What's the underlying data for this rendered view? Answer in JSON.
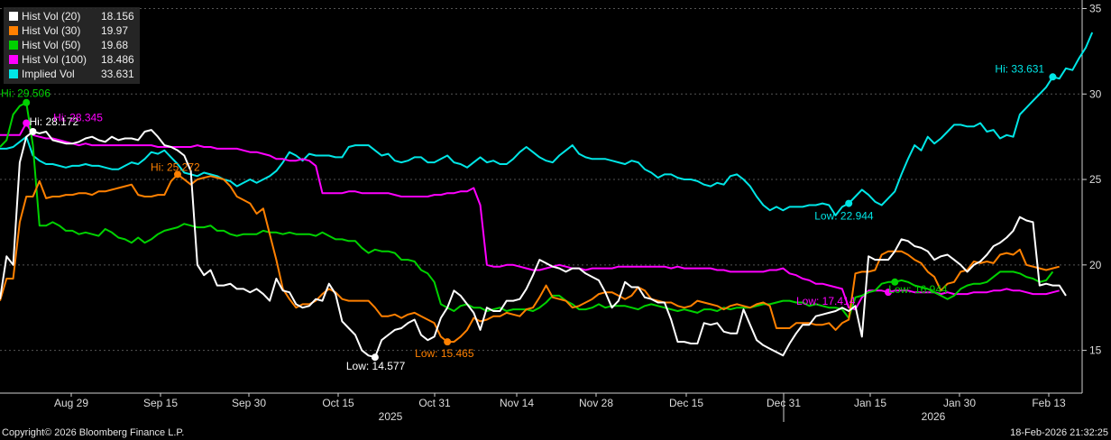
{
  "chart_data": {
    "type": "line",
    "y_axis": {
      "min": 12.5,
      "max": 35.5,
      "ticks": [
        15,
        20,
        25,
        30,
        35
      ],
      "position": "right"
    },
    "x_axis": {
      "tick_labels": [
        "Aug 29",
        "Sep 15",
        "Sep 30",
        "Oct 15",
        "Oct 31",
        "Nov 14",
        "Nov 28",
        "Dec 15",
        "Dec 31",
        "Jan 15",
        "Jan 30",
        "Feb 13"
      ],
      "year_labels": [
        "2025",
        "2026"
      ]
    },
    "grid": "horizontal dashed",
    "legend_placement": "top-left",
    "series": [
      {
        "name": "Hist Vol (20)",
        "last": "18.156",
        "color": "#ffffff",
        "values": [
          18.0,
          20.5,
          20.0,
          26.0,
          27.5,
          27.8,
          27.7,
          27.8,
          27.3,
          27.2,
          27.1,
          27.1,
          27.2,
          27.4,
          27.5,
          27.3,
          27.2,
          27.5,
          27.3,
          27.4,
          27.4,
          27.3,
          27.8,
          27.9,
          27.5,
          27.0,
          26.9,
          26.7,
          26.4,
          25.5,
          20.0,
          19.4,
          19.7,
          18.8,
          18.8,
          18.9,
          18.6,
          18.6,
          18.4,
          18.6,
          18.3,
          17.9,
          19.2,
          18.5,
          18.4,
          17.7,
          17.5,
          17.6,
          18.0,
          17.9,
          18.9,
          18.3,
          16.7,
          16.3,
          15.9,
          15.0,
          14.7,
          14.6,
          15.6,
          15.9,
          16.2,
          16.3,
          16.6,
          16.8,
          15.9,
          15.6,
          15.8,
          16.9,
          17.5,
          18.5,
          18.2,
          17.7,
          17.2,
          16.2,
          17.5,
          17.3,
          17.3,
          17.9,
          17.9,
          18.0,
          18.6,
          19.4,
          20.3,
          20.1,
          19.9,
          19.8,
          19.6,
          19.8,
          19.8,
          19.5,
          19.3,
          19.1,
          18.4,
          17.5,
          17.9,
          19.0,
          18.7,
          18.7,
          18.1,
          18.0,
          17.8,
          17.8,
          16.8,
          15.5,
          15.5,
          15.4,
          15.4,
          16.6,
          16.5,
          16.6,
          16.1,
          16.0,
          16.0,
          17.4,
          16.5,
          15.6,
          15.3,
          15.1,
          14.9,
          14.7,
          15.4,
          16.0,
          16.5,
          16.5,
          17.0,
          17.1,
          17.2,
          17.3,
          17.5,
          17.3,
          17.6,
          15.8,
          20.5,
          20.3,
          20.3,
          20.3,
          20.8,
          21.5,
          21.4,
          21.1,
          21.0,
          20.8,
          20.3,
          20.5,
          20.6,
          20.3,
          20.0,
          19.6,
          20.0,
          20.2,
          20.6,
          21.1,
          21.3,
          21.6,
          22.0,
          22.8,
          22.6,
          22.5,
          18.8,
          18.9,
          18.8,
          18.8,
          18.2
        ]
      },
      {
        "name": "Hist Vol (30)",
        "last": "19.97",
        "color": "#ff8000",
        "values": [
          17.9,
          19.2,
          19.2,
          22.5,
          24.0,
          24.0,
          24.9,
          23.9,
          24.0,
          24.0,
          24.1,
          24.1,
          24.2,
          24.2,
          24.1,
          24.3,
          24.3,
          24.4,
          24.5,
          24.6,
          24.7,
          24.1,
          24.0,
          24.0,
          24.1,
          24.1,
          24.9,
          25.3,
          25.0,
          24.7,
          25.0,
          25.1,
          25.2,
          25.1,
          25.0,
          24.6,
          24.0,
          23.8,
          23.6,
          23.0,
          23.3,
          21.8,
          20.3,
          18.6,
          18.0,
          17.5,
          17.7,
          17.7,
          17.9,
          18.3,
          18.6,
          18.4,
          18.0,
          17.9,
          17.9,
          17.9,
          17.9,
          17.5,
          17.0,
          17.0,
          17.1,
          16.9,
          17.1,
          17.2,
          17.0,
          16.8,
          16.6,
          15.8,
          15.5,
          15.5,
          15.8,
          16.2,
          16.9,
          16.7,
          16.8,
          17.0,
          17.0,
          17.2,
          17.1,
          17.0,
          17.4,
          17.5,
          18.1,
          18.8,
          18.1,
          18.0,
          17.9,
          17.5,
          17.6,
          17.8,
          18.0,
          18.3,
          18.4,
          18.4,
          18.2,
          18.0,
          18.2,
          18.7,
          18.5,
          18.0,
          17.9,
          17.8,
          17.8,
          17.6,
          17.5,
          17.6,
          17.9,
          17.8,
          17.7,
          17.6,
          17.4,
          17.6,
          17.7,
          17.6,
          17.5,
          17.7,
          17.8,
          17.6,
          16.3,
          16.3,
          16.3,
          16.6,
          16.6,
          16.6,
          16.5,
          16.5,
          16.6,
          16.2,
          16.6,
          16.8,
          19.5,
          19.6,
          19.6,
          19.7,
          20.6,
          20.8,
          20.8,
          20.8,
          20.6,
          20.3,
          20.1,
          19.6,
          19.3,
          18.5,
          18.9,
          19.0,
          19.6,
          19.7,
          20.2,
          20.1,
          20.2,
          20.1,
          20.6,
          20.7,
          20.6,
          20.9,
          20.0,
          19.9,
          19.8,
          19.7,
          19.8,
          19.9
        ]
      },
      {
        "name": "Hist Vol (50)",
        "last": "19.68",
        "color": "#00d200",
        "values": [
          26.9,
          27.3,
          28.8,
          29.3,
          29.5,
          27.0,
          22.3,
          22.3,
          22.5,
          22.3,
          22.0,
          22.0,
          21.8,
          21.9,
          21.8,
          21.7,
          22.1,
          21.9,
          21.6,
          21.5,
          21.3,
          21.6,
          21.3,
          21.5,
          21.8,
          22.0,
          22.1,
          22.2,
          22.4,
          22.3,
          22.2,
          22.2,
          22.3,
          22.0,
          22.0,
          21.8,
          21.7,
          21.8,
          21.8,
          21.8,
          22.0,
          21.9,
          21.9,
          21.8,
          21.9,
          21.8,
          21.8,
          21.8,
          21.7,
          21.9,
          21.7,
          21.5,
          21.5,
          21.4,
          21.4,
          21.0,
          20.7,
          20.9,
          20.8,
          20.8,
          20.7,
          20.3,
          20.3,
          20.2,
          19.7,
          19.5,
          19.0,
          17.7,
          17.5,
          17.3,
          17.6,
          17.7,
          17.5,
          17.5,
          17.3,
          17.4,
          17.5,
          17.3,
          17.4,
          17.4,
          17.4,
          17.3,
          17.5,
          17.8,
          18.2,
          18.2,
          17.9,
          17.7,
          17.4,
          17.4,
          17.5,
          17.7,
          17.5,
          17.6,
          17.6,
          17.6,
          17.5,
          17.4,
          17.6,
          17.7,
          17.6,
          17.5,
          17.4,
          17.3,
          17.4,
          17.3,
          17.2,
          17.4,
          17.4,
          17.3,
          17.5,
          17.4,
          17.5,
          17.5,
          17.5,
          17.6,
          17.7,
          17.7,
          17.8,
          17.9,
          17.9,
          17.8,
          17.8,
          17.6,
          17.7,
          17.6,
          17.5,
          17.5,
          17.4,
          16.9,
          18.1,
          18.2,
          18.4,
          18.5,
          18.9,
          19.0,
          19.0,
          19.1,
          19.0,
          18.8,
          18.7,
          18.6,
          18.4,
          18.2,
          18.0,
          18.2,
          18.6,
          18.8,
          18.9,
          18.9,
          19.0,
          19.3,
          19.6,
          19.6,
          19.6,
          19.5,
          19.3,
          19.2,
          19.0,
          19.1,
          19.6
        ]
      },
      {
        "name": "Hist Vol (100)",
        "last": "18.486",
        "color": "#ff00ff",
        "values": [
          27.6,
          27.6,
          27.6,
          27.6,
          28.3,
          27.6,
          27.5,
          27.4,
          27.4,
          27.3,
          27.2,
          27.1,
          27.0,
          27.1,
          27.0,
          27.0,
          27.0,
          27.0,
          27.0,
          27.0,
          27.0,
          27.0,
          27.0,
          27.0,
          26.9,
          26.9,
          26.9,
          26.9,
          26.9,
          26.9,
          27.0,
          26.9,
          26.9,
          26.8,
          26.8,
          26.8,
          26.8,
          26.7,
          26.6,
          26.6,
          26.5,
          26.4,
          26.2,
          26.2,
          26.1,
          26.1,
          26.2,
          26.1,
          25.8,
          24.2,
          24.2,
          24.2,
          24.2,
          24.3,
          24.3,
          24.2,
          24.2,
          24.2,
          24.2,
          24.2,
          24.1,
          24.0,
          24.0,
          24.0,
          24.0,
          24.0,
          24.1,
          24.1,
          24.2,
          24.2,
          24.3,
          24.3,
          24.5,
          23.5,
          20.0,
          19.9,
          19.9,
          20.0,
          20.0,
          19.9,
          19.8,
          19.7,
          19.7,
          19.8,
          19.9,
          20.0,
          19.9,
          19.8,
          19.8,
          19.7,
          19.8,
          19.8,
          19.8,
          19.8,
          19.9,
          19.9,
          19.9,
          19.9,
          19.9,
          19.9,
          19.9,
          19.9,
          19.8,
          19.9,
          19.8,
          19.8,
          19.8,
          19.8,
          19.8,
          19.7,
          19.7,
          19.6,
          19.6,
          19.6,
          19.6,
          19.6,
          19.6,
          19.7,
          19.7,
          19.8,
          19.5,
          19.4,
          19.2,
          19.1,
          18.9,
          18.9,
          18.8,
          18.7,
          18.6,
          17.5,
          17.4,
          18.1,
          18.5,
          18.5,
          18.5,
          18.4,
          18.5,
          18.5,
          18.5,
          18.4,
          18.4,
          18.4,
          18.4,
          18.3,
          18.4,
          18.3,
          18.3,
          18.3,
          18.4,
          18.4,
          18.4,
          18.5,
          18.5,
          18.6,
          18.5,
          18.5,
          18.4,
          18.3,
          18.3,
          18.3,
          18.4,
          18.5
        ]
      },
      {
        "name": "Implied Vol",
        "last": "33.631",
        "color": "#00e6e6",
        "values": [
          26.8,
          26.8,
          26.9,
          27.2,
          27.5,
          26.4,
          26.1,
          25.9,
          25.9,
          25.8,
          25.7,
          25.8,
          25.8,
          25.9,
          25.8,
          25.8,
          25.7,
          25.6,
          25.6,
          25.8,
          26.0,
          25.9,
          26.2,
          26.6,
          26.5,
          26.7,
          26.3,
          25.9,
          25.4,
          25.3,
          25.2,
          25.4,
          25.3,
          25.2,
          25.0,
          24.9,
          24.6,
          24.8,
          25.0,
          24.8,
          25.0,
          25.2,
          25.5,
          26.0,
          26.6,
          26.4,
          26.1,
          26.5,
          26.4,
          26.4,
          26.4,
          26.3,
          26.3,
          26.9,
          27.0,
          27.0,
          27.0,
          26.7,
          26.4,
          26.5,
          26.1,
          26.0,
          26.1,
          26.3,
          26.3,
          26.0,
          26.0,
          26.2,
          26.4,
          26.0,
          25.9,
          25.7,
          26.0,
          26.3,
          26.0,
          26.1,
          25.9,
          25.9,
          26.2,
          26.6,
          26.9,
          26.6,
          26.3,
          26.1,
          26.0,
          26.4,
          26.7,
          27.0,
          26.5,
          26.3,
          26.2,
          26.2,
          26.2,
          26.1,
          26.0,
          25.9,
          26.1,
          26.0,
          25.6,
          25.4,
          25.1,
          25.3,
          25.3,
          25.1,
          25.0,
          25.0,
          24.9,
          24.7,
          24.6,
          24.8,
          24.7,
          25.2,
          25.3,
          25.0,
          24.6,
          24.0,
          23.5,
          23.2,
          23.4,
          23.2,
          23.4,
          23.4,
          23.4,
          23.5,
          23.5,
          23.6,
          23.5,
          22.9,
          23.4,
          23.6,
          24.0,
          24.4,
          24.1,
          23.7,
          23.5,
          23.9,
          24.3,
          25.3,
          26.2,
          27.0,
          26.7,
          27.5,
          27.1,
          27.4,
          27.8,
          28.2,
          28.2,
          28.1,
          28.1,
          28.3,
          27.8,
          27.9,
          27.4,
          27.6,
          27.5,
          28.8,
          29.2,
          29.6,
          30.0,
          30.4,
          31.0,
          30.9,
          31.5,
          31.4,
          32.1,
          32.7,
          33.6
        ]
      }
    ],
    "annotations": [
      {
        "series": 2,
        "index": 4,
        "label": "Hi: 29.506"
      },
      {
        "series": 0,
        "index": 5,
        "label": "Hi: 28.172"
      },
      {
        "series": 3,
        "index": 4,
        "label": "Hi: 28.345"
      },
      {
        "series": 1,
        "index": 27,
        "label": "Hi: 25.272"
      },
      {
        "series": 4,
        "index": 160,
        "label": "Hi: 33.631"
      },
      {
        "series": 0,
        "index": 57,
        "label": "Low: 14.577"
      },
      {
        "series": 1,
        "index": 68,
        "label": "Low: 15.465"
      },
      {
        "series": 4,
        "index": 129,
        "label": "Low: 22.944"
      },
      {
        "series": 3,
        "index": 135,
        "label": "Low: 17.414"
      },
      {
        "series": 2,
        "index": 136,
        "label": "Low: 16.944"
      }
    ]
  },
  "footer": {
    "copyright": "Copyright© 2026 Bloomberg Finance L.P.",
    "timestamp": "18-Feb-2026 21:32:25"
  }
}
